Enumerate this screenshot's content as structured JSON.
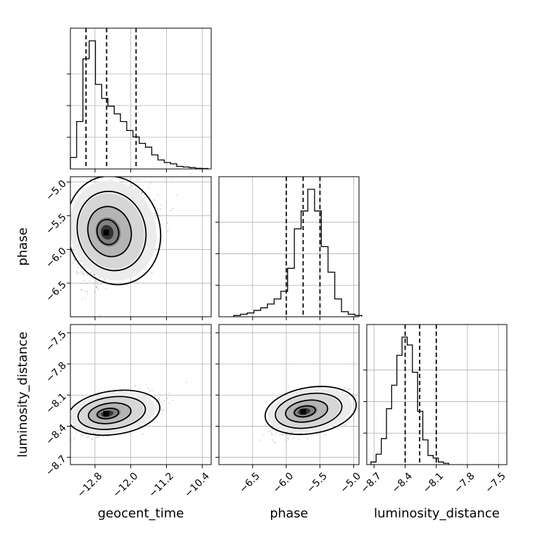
{
  "chart_data": {
    "type": "corner",
    "parameters": [
      "geocent_time",
      "phase",
      "luminosity_distance"
    ],
    "axes": {
      "geocent_time": {
        "label": "geocent_time",
        "range": [
          -13.35,
          -10.2
        ],
        "ticks": [
          -12.8,
          -12.0,
          -11.2,
          -10.4
        ],
        "tick_labels": [
          "−12.8",
          "−12.0",
          "−11.2",
          "−10.4"
        ]
      },
      "phase": {
        "label": "phase",
        "range": [
          -7.0,
          -4.92
        ],
        "ticks": [
          -6.5,
          -6.0,
          -5.5,
          -5.0
        ],
        "tick_labels": [
          "−6.5",
          "−6.0",
          "−5.5",
          "−5.0"
        ]
      },
      "luminosity_distance": {
        "label": "luminosity_distance",
        "range": [
          -8.77,
          -7.42
        ],
        "ticks": [
          -8.7,
          -8.4,
          -8.1,
          -7.8,
          -7.5
        ],
        "tick_labels": [
          "−8.7",
          "−8.4",
          "−8.1",
          "−7.8",
          "−7.5"
        ]
      }
    },
    "histograms": {
      "geocent_time": {
        "bin_start": -13.35,
        "bin_width": 0.14,
        "counts": [
          0.09,
          0.37,
          0.86,
          1.0,
          0.66,
          0.55,
          0.49,
          0.43,
          0.37,
          0.3,
          0.25,
          0.2,
          0.17,
          0.11,
          0.07,
          0.05,
          0.04,
          0.02,
          0.015,
          0.01,
          0.005,
          0.003
        ],
        "quantiles": [
          -13.0,
          -12.54,
          -11.88
        ]
      },
      "phase": {
        "bin_start": -6.78,
        "bin_width": 0.1,
        "counts": [
          0.01,
          0.02,
          0.03,
          0.05,
          0.07,
          0.1,
          0.14,
          0.2,
          0.38,
          0.69,
          0.83,
          1.0,
          0.83,
          0.55,
          0.35,
          0.14,
          0.04,
          0.02,
          0.01
        ],
        "quantiles": [
          -6.0,
          -5.75,
          -5.5
        ]
      },
      "luminosity_distance": {
        "bin_start": -8.73,
        "bin_width": 0.05,
        "counts": [
          0.02,
          0.08,
          0.2,
          0.43,
          0.61,
          0.84,
          0.98,
          0.92,
          0.71,
          0.41,
          0.19,
          0.07,
          0.05,
          0.02,
          0.01
        ],
        "quantiles": [
          -8.4,
          -8.26,
          -8.1
        ]
      }
    },
    "scatter_2d": [
      {
        "x": "geocent_time",
        "y": "phase",
        "mean": [
          -12.55,
          -5.75
        ],
        "sd": [
          0.38,
          0.33
        ],
        "corr": 0.4
      },
      {
        "x": "geocent_time",
        "y": "luminosity_distance",
        "mean": [
          -12.55,
          -8.28
        ],
        "sd": [
          0.38,
          0.085
        ],
        "corr": 0.45
      },
      {
        "x": "phase",
        "y": "luminosity_distance",
        "mean": [
          -5.75,
          -8.26
        ],
        "sd": [
          0.25,
          0.09
        ],
        "corr": 0.5
      }
    ],
    "histogram_style": "step",
    "quantile_lines": "dashed",
    "grid": true
  }
}
